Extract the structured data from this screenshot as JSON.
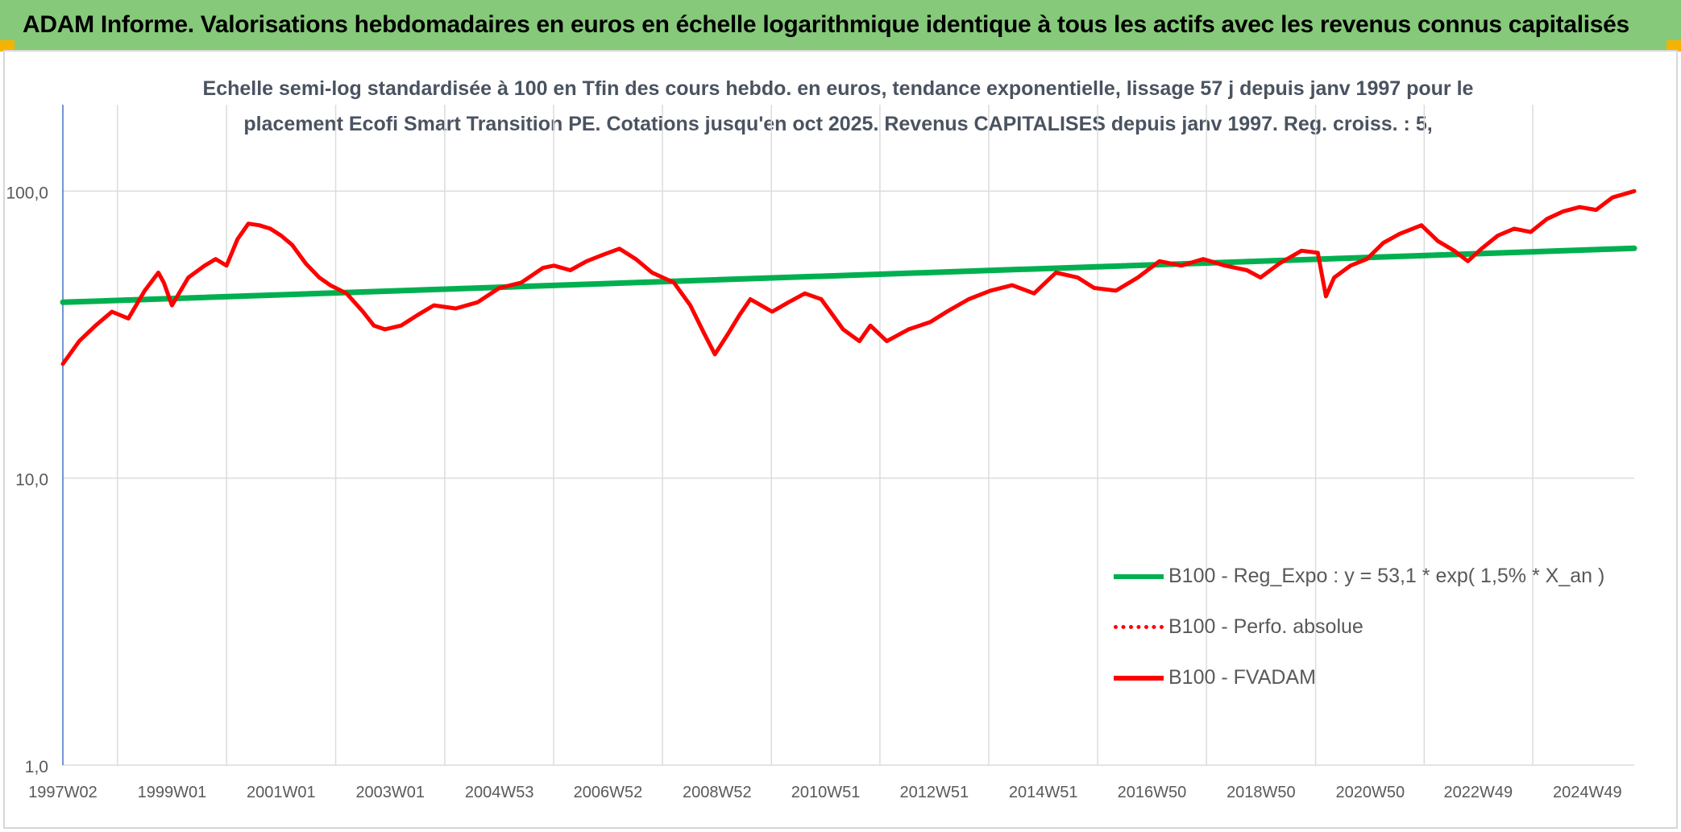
{
  "header": {
    "title": "ADAM Informe. Valorisations hebdomadaires en euros en échelle logarithmique identique à tous les actifs avec les revenus connus capitalisés"
  },
  "chart_data": {
    "type": "line",
    "title": "Echelle semi-log standardisée à 100 en Tfin des cours hebdo. en euros, tendance exponentielle, lissage 57 j depuis janv 1997 pour le placement Ecofi Smart Transition PE. Cotations jusqu'en oct 2025. Revenus CAPITALISES depuis janv 1997. Reg. croiss. : 5,",
    "title_lines": [
      "Echelle semi-log standardisée à 100 en Tfin des cours hebdo. en euros, tendance exponentielle, lissage 57 j depuis janv 1997 pour le",
      "placement Ecofi Smart Transition PE. Cotations jusqu'en oct 2025. Revenus CAPITALISES depuis janv 1997. Reg. croiss. : 5,"
    ],
    "y_scale": "log",
    "ylim": [
      1,
      200
    ],
    "y_ticks": [
      1,
      10,
      100
    ],
    "y_tick_labels": [
      "1,0",
      "10,0",
      "100,0"
    ],
    "xlim": [
      1997.0,
      2025.8
    ],
    "x_ticks": [
      1997.0,
      1999.0,
      2001.0,
      2003.0,
      2005.0,
      2006.99,
      2008.99,
      2010.98,
      2012.97,
      2014.97,
      2016.96,
      2018.96,
      2020.96,
      2022.94,
      2024.94
    ],
    "x_tick_labels": [
      "1997W02",
      "1999W01",
      "2001W01",
      "2003W01",
      "2004W53",
      "2006W52",
      "2008W52",
      "2010W51",
      "2012W51",
      "2014W51",
      "2016W50",
      "2018W50",
      "2020W50",
      "2022W49",
      "2024W49"
    ],
    "grid": true,
    "legend_position": "bottom-right",
    "series": [
      {
        "name": "B100 - Reg_Expo : y = 53,1 * exp( 1,5% * X_an )",
        "color": "#00b050",
        "style": "solid",
        "x": [
          1997.0,
          2025.8
        ],
        "values": [
          41,
          63.2
        ]
      },
      {
        "name": "B100 - Perfo. absolue",
        "color": "#ff0000",
        "style": "dotted",
        "x": [],
        "values": []
      },
      {
        "name": "B100 - FVADAM",
        "color": "#ff0000",
        "style": "solid",
        "x": [
          1997.0,
          1997.3,
          1997.6,
          1997.9,
          1998.2,
          1998.5,
          1998.75,
          1998.85,
          1999.0,
          1999.3,
          1999.6,
          1999.8,
          2000.0,
          2000.2,
          2000.4,
          2000.6,
          2000.8,
          2001.0,
          2001.2,
          2001.45,
          2001.7,
          2001.9,
          2002.2,
          2002.5,
          2002.7,
          2002.9,
          2003.2,
          2003.5,
          2003.8,
          2004.2,
          2004.6,
          2005.0,
          2005.4,
          2005.8,
          2006.0,
          2006.3,
          2006.6,
          2006.9,
          2007.2,
          2007.5,
          2007.8,
          2008.2,
          2008.5,
          2008.75,
          2008.95,
          2009.2,
          2009.4,
          2009.6,
          2010.0,
          2010.3,
          2010.6,
          2010.9,
          2011.3,
          2011.6,
          2011.8,
          2012.1,
          2012.5,
          2012.9,
          2013.2,
          2013.6,
          2014.0,
          2014.4,
          2014.8,
          2015.2,
          2015.6,
          2015.9,
          2016.3,
          2016.7,
          2017.1,
          2017.5,
          2017.9,
          2018.3,
          2018.7,
          2018.95,
          2019.3,
          2019.7,
          2020.0,
          2020.15,
          2020.3,
          2020.6,
          2020.9,
          2021.2,
          2021.5,
          2021.9,
          2022.2,
          2022.5,
          2022.75,
          2023.0,
          2023.3,
          2023.6,
          2023.9,
          2024.2,
          2024.5,
          2024.8,
          2025.1,
          2025.4,
          2025.8
        ],
        "values": [
          25,
          30,
          34,
          38,
          36,
          45,
          52,
          48,
          40,
          50,
          55,
          58,
          55,
          68,
          77,
          76,
          74,
          70,
          65,
          56,
          50,
          47,
          44,
          38,
          34,
          33,
          34,
          37,
          40,
          39,
          41,
          46,
          48,
          54,
          55,
          53,
          57,
          60,
          63,
          58,
          52,
          48,
          40,
          32,
          27,
          32,
          37,
          42,
          38,
          41,
          44,
          42,
          33,
          30,
          34,
          30,
          33,
          35,
          38,
          42,
          45,
          47,
          44,
          52,
          50,
          46,
          45,
          50,
          57,
          55,
          58,
          55,
          53,
          50,
          56,
          62,
          61,
          43,
          50,
          55,
          58,
          66,
          71,
          76,
          67,
          62,
          57,
          63,
          70,
          74,
          72,
          80,
          85,
          88,
          86,
          95,
          100
        ]
      }
    ]
  }
}
